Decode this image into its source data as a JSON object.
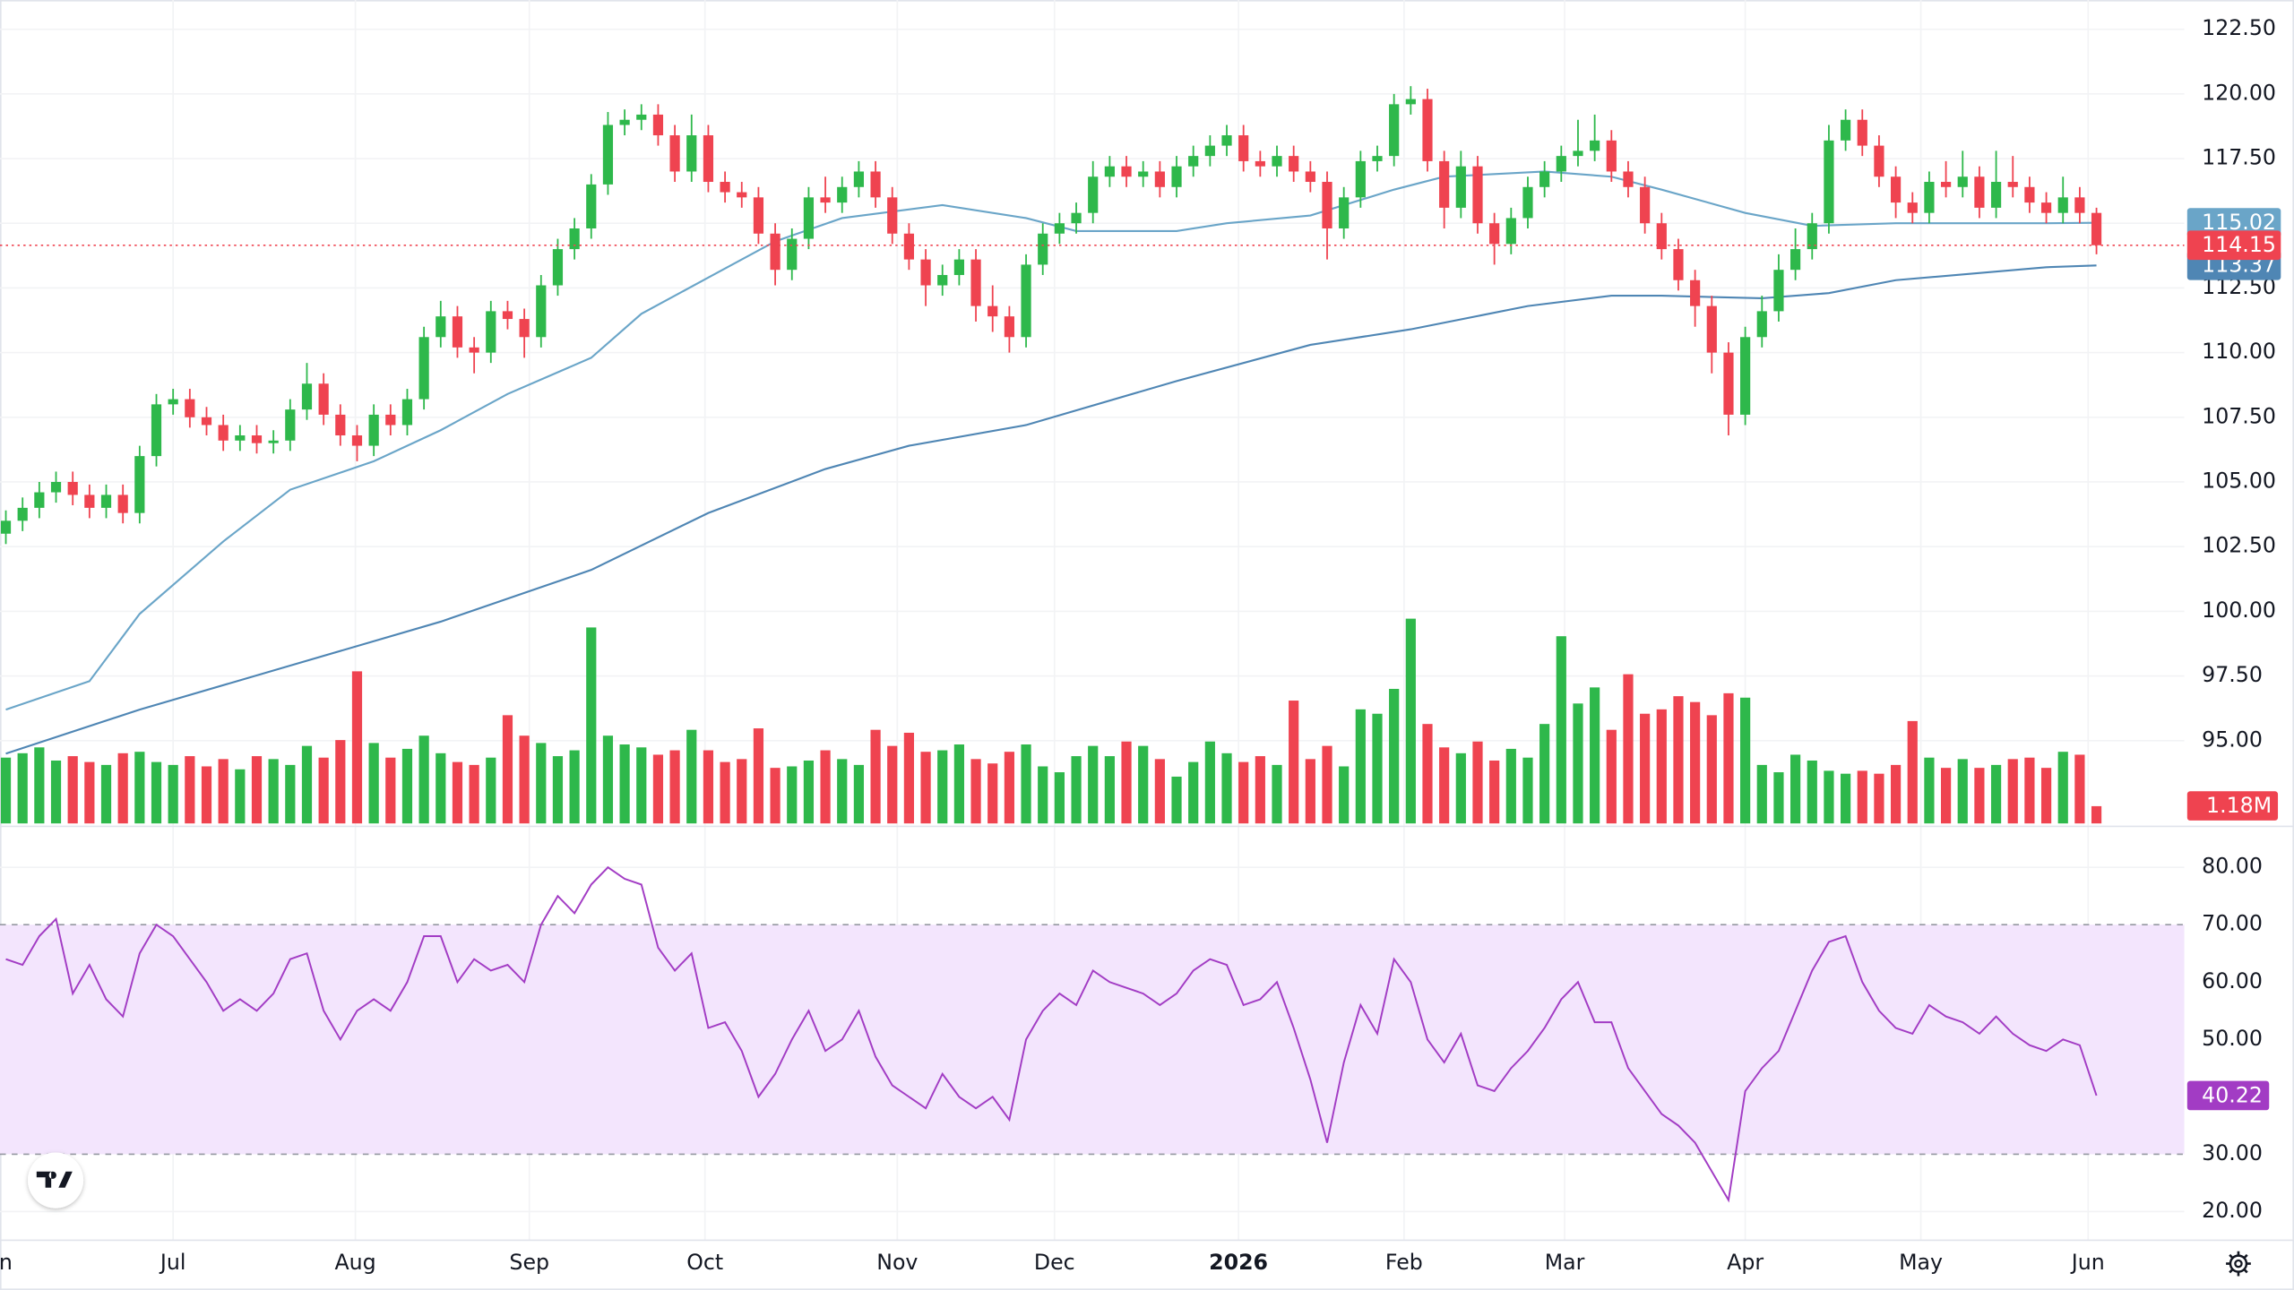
{
  "chart_data": {
    "type": "candlestick",
    "up_color": "#2eb84b",
    "down_color": "#ef4350",
    "grid": true,
    "xlim": [
      -0.35,
      130.25
    ],
    "xticks": [
      {
        "value": -0.6,
        "label": "Jun"
      },
      {
        "value": 10,
        "label": "Jul"
      },
      {
        "value": 20.9,
        "label": "Aug"
      },
      {
        "value": 31.3,
        "label": "Sep"
      },
      {
        "value": 41.8,
        "label": "Oct"
      },
      {
        "value": 53.3,
        "label": "Nov"
      },
      {
        "value": 62.7,
        "label": "Dec"
      },
      {
        "value": 73.7,
        "label": "2026"
      },
      {
        "value": 83.6,
        "label": "Feb"
      },
      {
        "value": 93.2,
        "label": "Mar"
      },
      {
        "value": 104,
        "label": "Apr"
      },
      {
        "value": 114.5,
        "label": "May"
      },
      {
        "value": 124.5,
        "label": "Jun"
      }
    ],
    "ylim": [
      91.8,
      123.63
    ],
    "yticks": [
      {
        "value": 95,
        "label": "95.00"
      },
      {
        "value": 97.5,
        "label": "97.50"
      },
      {
        "value": 100,
        "label": "100.00"
      },
      {
        "value": 102.5,
        "label": "102.50"
      },
      {
        "value": 105,
        "label": "105.00"
      },
      {
        "value": 107.5,
        "label": "107.50"
      },
      {
        "value": 110,
        "label": "110.00"
      },
      {
        "value": 112.5,
        "label": "112.50"
      },
      {
        "value": 115,
        "label": "115.00"
      },
      {
        "value": 117.5,
        "label": "117.50"
      },
      {
        "value": 120,
        "label": "120.00"
      },
      {
        "value": 122.5,
        "label": "122.50"
      }
    ],
    "ohlc": [
      [
        103.0,
        103.9,
        102.6,
        103.5
      ],
      [
        103.5,
        104.4,
        103.1,
        104.0
      ],
      [
        104.0,
        105.0,
        103.6,
        104.6
      ],
      [
        104.6,
        105.4,
        104.2,
        105.0
      ],
      [
        105.0,
        105.4,
        104.1,
        104.5
      ],
      [
        104.5,
        104.9,
        103.6,
        104.0
      ],
      [
        104.0,
        104.9,
        103.6,
        104.5
      ],
      [
        104.5,
        104.9,
        103.4,
        103.8
      ],
      [
        103.8,
        106.4,
        103.4,
        106.0
      ],
      [
        106.0,
        108.4,
        105.6,
        108.0
      ],
      [
        108.0,
        108.6,
        107.6,
        108.2
      ],
      [
        108.2,
        108.6,
        107.1,
        107.5
      ],
      [
        107.5,
        107.9,
        106.8,
        107.2
      ],
      [
        107.2,
        107.6,
        106.2,
        106.6
      ],
      [
        106.6,
        107.2,
        106.2,
        106.8
      ],
      [
        106.8,
        107.2,
        106.1,
        106.5
      ],
      [
        106.5,
        107.0,
        106.1,
        106.6
      ],
      [
        106.6,
        108.2,
        106.2,
        107.8
      ],
      [
        107.8,
        109.6,
        107.4,
        108.8
      ],
      [
        108.8,
        109.2,
        107.2,
        107.6
      ],
      [
        107.6,
        108.0,
        106.4,
        106.8
      ],
      [
        106.8,
        107.2,
        105.8,
        106.4
      ],
      [
        106.4,
        108.0,
        106.0,
        107.6
      ],
      [
        107.6,
        108.0,
        106.8,
        107.2
      ],
      [
        107.2,
        108.6,
        106.8,
        108.2
      ],
      [
        108.2,
        111.0,
        107.8,
        110.6
      ],
      [
        110.6,
        112.0,
        110.2,
        111.4
      ],
      [
        111.4,
        111.8,
        109.8,
        110.2
      ],
      [
        110.2,
        110.6,
        109.2,
        110.0
      ],
      [
        110.0,
        112.0,
        109.6,
        111.6
      ],
      [
        111.6,
        112.0,
        110.9,
        111.3
      ],
      [
        111.3,
        111.7,
        109.8,
        110.6
      ],
      [
        110.6,
        113.0,
        110.2,
        112.6
      ],
      [
        112.6,
        114.4,
        112.2,
        114.0
      ],
      [
        114.0,
        115.2,
        113.6,
        114.8
      ],
      [
        114.8,
        116.9,
        114.4,
        116.5
      ],
      [
        116.5,
        119.3,
        116.1,
        118.8
      ],
      [
        118.8,
        119.4,
        118.4,
        119.0
      ],
      [
        119.0,
        119.6,
        118.6,
        119.2
      ],
      [
        119.2,
        119.6,
        118.0,
        118.4
      ],
      [
        118.4,
        118.8,
        116.6,
        117.0
      ],
      [
        117.0,
        119.2,
        116.6,
        118.4
      ],
      [
        118.4,
        118.8,
        116.2,
        116.6
      ],
      [
        116.6,
        117.0,
        115.8,
        116.2
      ],
      [
        116.2,
        116.6,
        115.6,
        116.0
      ],
      [
        116.0,
        116.4,
        114.2,
        114.6
      ],
      [
        114.6,
        115.0,
        112.6,
        113.2
      ],
      [
        113.2,
        114.8,
        112.8,
        114.4
      ],
      [
        114.4,
        116.4,
        114.0,
        116.0
      ],
      [
        116.0,
        116.8,
        115.4,
        115.8
      ],
      [
        115.8,
        116.8,
        115.4,
        116.4
      ],
      [
        116.4,
        117.4,
        116.0,
        117.0
      ],
      [
        117.0,
        117.4,
        115.6,
        116.0
      ],
      [
        116.0,
        116.4,
        114.2,
        114.6
      ],
      [
        114.6,
        115.0,
        113.2,
        113.6
      ],
      [
        113.6,
        114.0,
        111.8,
        112.6
      ],
      [
        112.6,
        113.4,
        112.2,
        113.0
      ],
      [
        113.0,
        114.0,
        112.6,
        113.6
      ],
      [
        113.6,
        114.0,
        111.2,
        111.8
      ],
      [
        111.8,
        112.6,
        110.8,
        111.4
      ],
      [
        111.4,
        111.8,
        110.0,
        110.6
      ],
      [
        110.6,
        113.8,
        110.2,
        113.4
      ],
      [
        113.4,
        115.0,
        113.0,
        114.6
      ],
      [
        114.6,
        115.4,
        114.2,
        115.0
      ],
      [
        115.0,
        115.8,
        114.6,
        115.4
      ],
      [
        115.4,
        117.4,
        115.0,
        116.8
      ],
      [
        116.8,
        117.6,
        116.4,
        117.2
      ],
      [
        117.2,
        117.6,
        116.4,
        116.8
      ],
      [
        116.8,
        117.4,
        116.4,
        117.0
      ],
      [
        117.0,
        117.4,
        116.0,
        116.4
      ],
      [
        116.4,
        117.6,
        116.0,
        117.2
      ],
      [
        117.2,
        118.0,
        116.8,
        117.6
      ],
      [
        117.6,
        118.4,
        117.2,
        118.0
      ],
      [
        118.0,
        118.8,
        117.6,
        118.4
      ],
      [
        118.4,
        118.8,
        117.0,
        117.4
      ],
      [
        117.4,
        117.8,
        116.8,
        117.2
      ],
      [
        117.2,
        118.0,
        116.8,
        117.6
      ],
      [
        117.6,
        118.0,
        116.6,
        117.0
      ],
      [
        117.0,
        117.4,
        116.2,
        116.6
      ],
      [
        116.6,
        117.0,
        113.6,
        114.8
      ],
      [
        114.8,
        116.4,
        114.4,
        116.0
      ],
      [
        116.0,
        117.8,
        115.6,
        117.4
      ],
      [
        117.4,
        118.0,
        117.0,
        117.6
      ],
      [
        117.6,
        120.0,
        117.2,
        119.6
      ],
      [
        119.6,
        120.3,
        119.2,
        119.8
      ],
      [
        119.8,
        120.2,
        117.0,
        117.4
      ],
      [
        117.4,
        117.8,
        114.8,
        115.6
      ],
      [
        115.6,
        117.8,
        115.2,
        117.2
      ],
      [
        117.2,
        117.6,
        114.6,
        115.0
      ],
      [
        115.0,
        115.4,
        113.4,
        114.2
      ],
      [
        114.2,
        115.6,
        113.8,
        115.2
      ],
      [
        115.2,
        116.8,
        114.8,
        116.4
      ],
      [
        116.4,
        117.4,
        116.0,
        117.0
      ],
      [
        117.0,
        118.0,
        116.6,
        117.6
      ],
      [
        117.6,
        119.0,
        117.2,
        117.8
      ],
      [
        117.8,
        119.2,
        117.4,
        118.2
      ],
      [
        118.2,
        118.6,
        116.6,
        117.0
      ],
      [
        117.0,
        117.4,
        116.0,
        116.4
      ],
      [
        116.4,
        116.8,
        114.6,
        115.0
      ],
      [
        115.0,
        115.4,
        113.6,
        114.0
      ],
      [
        114.0,
        114.4,
        112.4,
        112.8
      ],
      [
        112.8,
        113.2,
        111.0,
        111.8
      ],
      [
        111.8,
        112.2,
        109.2,
        110.0
      ],
      [
        110.0,
        110.4,
        106.8,
        107.6
      ],
      [
        107.6,
        111.0,
        107.2,
        110.6
      ],
      [
        110.6,
        112.2,
        110.2,
        111.6
      ],
      [
        111.6,
        113.8,
        111.2,
        113.2
      ],
      [
        113.2,
        114.8,
        112.8,
        114.0
      ],
      [
        114.0,
        115.4,
        113.6,
        115.0
      ],
      [
        115.0,
        118.8,
        114.6,
        118.2
      ],
      [
        118.2,
        119.4,
        117.8,
        119.0
      ],
      [
        119.0,
        119.4,
        117.6,
        118.0
      ],
      [
        118.0,
        118.4,
        116.4,
        116.8
      ],
      [
        116.8,
        117.2,
        115.2,
        115.8
      ],
      [
        115.8,
        116.2,
        115.0,
        115.4
      ],
      [
        115.4,
        117.0,
        115.0,
        116.6
      ],
      [
        116.6,
        117.4,
        116.0,
        116.4
      ],
      [
        116.4,
        117.8,
        116.0,
        116.8
      ],
      [
        116.8,
        117.2,
        115.2,
        115.6
      ],
      [
        115.6,
        117.8,
        115.2,
        116.6
      ],
      [
        116.6,
        117.6,
        116.0,
        116.4
      ],
      [
        116.4,
        116.8,
        115.4,
        115.8
      ],
      [
        115.8,
        116.2,
        115.0,
        115.4
      ],
      [
        115.4,
        116.8,
        115.0,
        116.0
      ],
      [
        116.0,
        116.4,
        115.0,
        115.4
      ],
      [
        115.4,
        115.6,
        113.8,
        114.15
      ]
    ],
    "ma": [
      {
        "color": "#6aa5c8",
        "x": [
          0,
          5,
          8,
          13,
          17,
          22,
          26,
          30,
          35,
          38,
          42,
          46,
          50,
          56,
          61,
          64,
          70,
          73,
          78,
          83,
          86,
          92,
          96,
          99,
          104,
          108,
          113,
          122,
          125
        ],
        "values": [
          96.2,
          97.3,
          99.9,
          102.7,
          104.7,
          105.8,
          107.0,
          108.4,
          109.8,
          111.5,
          112.9,
          114.3,
          115.2,
          115.7,
          115.2,
          114.7,
          114.7,
          115.0,
          115.3,
          116.3,
          116.8,
          117.0,
          116.8,
          116.3,
          115.4,
          114.9,
          115.0,
          115.0,
          115.02
        ]
      },
      {
        "color": "#4f86b4",
        "x": [
          0,
          8,
          17,
          26,
          35,
          42,
          49,
          54,
          61,
          70,
          78,
          84,
          91,
          96,
          99,
          105,
          109,
          113,
          122,
          125
        ],
        "values": [
          94.5,
          96.2,
          97.9,
          99.6,
          101.6,
          103.8,
          105.5,
          106.4,
          107.2,
          108.9,
          110.3,
          110.9,
          111.8,
          112.2,
          112.2,
          112.1,
          112.3,
          112.8,
          113.3,
          113.37
        ]
      }
    ],
    "volume": {
      "ylim": [
        0,
        16
      ],
      "values": [
        4.5,
        4.8,
        5.2,
        4.3,
        4.6,
        4.2,
        4.0,
        4.8,
        4.9,
        4.2,
        4.0,
        4.6,
        3.9,
        4.4,
        3.7,
        4.6,
        4.4,
        4.0,
        5.3,
        4.5,
        5.7,
        10.4,
        5.5,
        4.5,
        5.1,
        6.0,
        4.8,
        4.2,
        4.0,
        4.5,
        7.4,
        6.0,
        5.5,
        4.6,
        5.0,
        13.4,
        6.0,
        5.4,
        5.2,
        4.7,
        5.0,
        6.4,
        5.0,
        4.2,
        4.4,
        6.5,
        3.8,
        3.9,
        4.3,
        5.0,
        4.4,
        4.0,
        6.4,
        5.3,
        6.2,
        4.9,
        5.0,
        5.4,
        4.4,
        4.1,
        4.9,
        5.4,
        3.9,
        3.5,
        4.6,
        5.3,
        4.6,
        5.6,
        5.3,
        4.4,
        3.2,
        4.2,
        5.6,
        4.8,
        4.2,
        4.6,
        4.0,
        8.4,
        4.4,
        5.3,
        3.9,
        7.8,
        7.5,
        9.2,
        14.0,
        6.8,
        5.2,
        4.8,
        5.6,
        4.3,
        5.1,
        4.5,
        6.8,
        12.8,
        8.2,
        9.3,
        6.4,
        10.2,
        7.5,
        7.8,
        8.7,
        8.3,
        7.4,
        8.9,
        8.6,
        4.0,
        3.5,
        4.7,
        4.3,
        3.6,
        3.4,
        3.6,
        3.4,
        4.0,
        7.0,
        4.5,
        3.8,
        4.4,
        3.8,
        4.0,
        4.4,
        4.5,
        3.8,
        4.9,
        4.7,
        1.18
      ],
      "last_label": "1.18M"
    },
    "rsi": {
      "color": "#a23cc4",
      "band": [
        30,
        70
      ],
      "band_color": "#f3e5fd",
      "ylim": [
        15,
        87.14
      ],
      "yticks": [
        {
          "value": 20,
          "label": "20.00"
        },
        {
          "value": 30,
          "label": "30.00"
        },
        {
          "value": 40,
          "label": "40.00"
        },
        {
          "value": 50,
          "label": "50.00"
        },
        {
          "value": 60,
          "label": "60.00"
        },
        {
          "value": 70,
          "label": "70.00"
        },
        {
          "value": 80,
          "label": "80.00"
        }
      ],
      "values": [
        64,
        63,
        68,
        71,
        58,
        63,
        57,
        54,
        65,
        70,
        68,
        64,
        60,
        55,
        57,
        55,
        58,
        64,
        65,
        55,
        50,
        55,
        57,
        55,
        60,
        68,
        68,
        60,
        64,
        62,
        63,
        60,
        70,
        75,
        72,
        77,
        80,
        78,
        77,
        66,
        62,
        65,
        52,
        53,
        48,
        40,
        44,
        50,
        55,
        48,
        50,
        55,
        47,
        42,
        40,
        38,
        44,
        40,
        38,
        40,
        36,
        50,
        55,
        58,
        56,
        62,
        60,
        59,
        58,
        56,
        58,
        62,
        64,
        63,
        56,
        57,
        60,
        52,
        43,
        32,
        46,
        56,
        51,
        64,
        60,
        50,
        46,
        51,
        42,
        41,
        45,
        48,
        52,
        57,
        60,
        53,
        53,
        45,
        41,
        37,
        35,
        32,
        27,
        22,
        41,
        45,
        48,
        55,
        62,
        67,
        68,
        60,
        55,
        52,
        51,
        56,
        54,
        53,
        51,
        54,
        51,
        49,
        48,
        50,
        49,
        40.22
      ]
    }
  }
}
